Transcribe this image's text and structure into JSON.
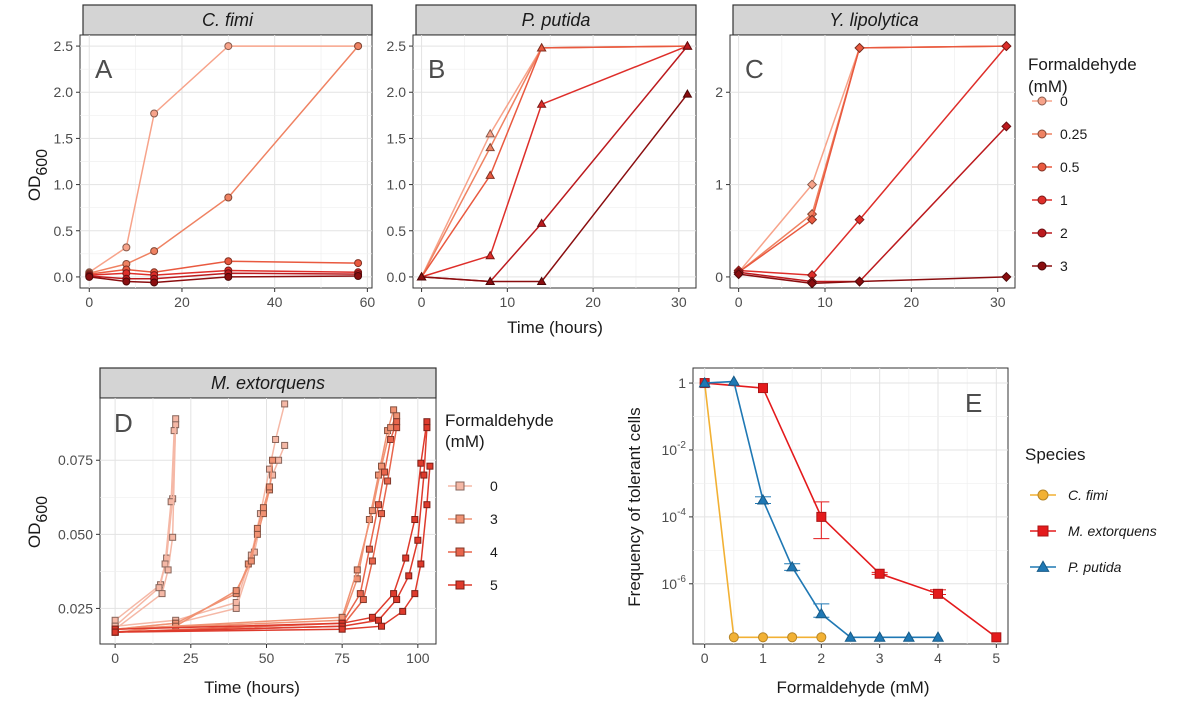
{
  "chart_data": [
    {
      "id": "A",
      "panel_label": "A",
      "strip": "C. fimi",
      "type": "line",
      "marker": "circle",
      "ylabel": "OD",
      "ylabel_sub": "600",
      "xlabel": "",
      "xlim": [
        -2,
        61
      ],
      "ylim": [
        -0.12,
        2.62
      ],
      "xticks": [
        0,
        20,
        40,
        60
      ],
      "xtick_labels": [
        "0",
        "20",
        "40",
        "60"
      ],
      "yticks": [
        0,
        0.5,
        1,
        1.5,
        2,
        2.5
      ],
      "ytick_labels": [
        "0.0",
        "0.5",
        "1.0",
        "1.5",
        "2.0",
        "2.5"
      ],
      "series": [
        {
          "name": "0",
          "color": "#f7a38a",
          "x": [
            0,
            8,
            14,
            30,
            58
          ],
          "y": [
            0.05,
            0.32,
            1.77,
            2.5,
            2.5
          ]
        },
        {
          "name": "0.25",
          "color": "#ef8262",
          "x": [
            0,
            8,
            14,
            30,
            58
          ],
          "y": [
            0.04,
            0.14,
            0.28,
            0.86,
            2.5
          ]
        },
        {
          "name": "0.5",
          "color": "#e9593f",
          "x": [
            0,
            8,
            14,
            30,
            58
          ],
          "y": [
            0.03,
            0.08,
            0.05,
            0.17,
            0.15
          ]
        },
        {
          "name": "1",
          "color": "#de2e2a",
          "x": [
            0,
            8,
            14,
            30,
            58
          ],
          "y": [
            0.02,
            0.04,
            0.02,
            0.07,
            0.05
          ]
        },
        {
          "name": "2",
          "color": "#bc1a1e",
          "x": [
            0,
            8,
            14,
            30,
            58
          ],
          "y": [
            0.01,
            -0.02,
            -0.02,
            0.04,
            0.03
          ]
        },
        {
          "name": "3",
          "color": "#8a0d0f",
          "x": [
            0,
            8,
            14,
            30,
            58
          ],
          "y": [
            0.0,
            -0.05,
            -0.06,
            0.0,
            0.01
          ]
        }
      ]
    },
    {
      "id": "B",
      "panel_label": "B",
      "strip": "P. putida",
      "type": "line",
      "marker": "triangle",
      "ylabel": "",
      "xlabel": "Time (hours)",
      "xlim": [
        -1,
        32
      ],
      "ylim": [
        -0.12,
        2.62
      ],
      "xticks": [
        0,
        10,
        20,
        30
      ],
      "xtick_labels": [
        "0",
        "10",
        "20",
        "30"
      ],
      "yticks": [
        0,
        0.5,
        1,
        1.5,
        2,
        2.5
      ],
      "ytick_labels": [
        "0.0",
        "0.5",
        "1.0",
        "1.5",
        "2.0",
        "2.5"
      ],
      "series": [
        {
          "name": "0",
          "color": "#f7a38a",
          "x": [
            0,
            8,
            14,
            31
          ],
          "y": [
            0.0,
            1.55,
            2.48,
            2.5
          ]
        },
        {
          "name": "0.25",
          "color": "#ef8262",
          "x": [
            0,
            8,
            14,
            31
          ],
          "y": [
            0.0,
            1.4,
            2.48,
            2.5
          ]
        },
        {
          "name": "0.5",
          "color": "#e9593f",
          "x": [
            0,
            8,
            14,
            31
          ],
          "y": [
            0.0,
            1.1,
            2.48,
            2.5
          ]
        },
        {
          "name": "1",
          "color": "#de2e2a",
          "x": [
            0,
            8,
            14,
            31
          ],
          "y": [
            0.0,
            0.23,
            1.87,
            2.5
          ]
        },
        {
          "name": "2",
          "color": "#bc1a1e",
          "x": [
            0,
            8,
            14,
            31
          ],
          "y": [
            0.0,
            -0.05,
            0.58,
            2.5
          ]
        },
        {
          "name": "3",
          "color": "#8a0d0f",
          "x": [
            0,
            8,
            14,
            31
          ],
          "y": [
            0.0,
            -0.05,
            -0.05,
            1.98
          ]
        }
      ]
    },
    {
      "id": "C",
      "panel_label": "C",
      "strip": "Y. lipolytica",
      "type": "line",
      "marker": "diamond",
      "ylabel": "",
      "xlabel": "",
      "xlim": [
        -1,
        32
      ],
      "ylim": [
        -0.12,
        2.62
      ],
      "xticks": [
        0,
        10,
        20,
        30
      ],
      "xtick_labels": [
        "0",
        "10",
        "20",
        "30"
      ],
      "yticks": [
        0,
        1,
        2
      ],
      "ytick_labels": [
        "0",
        "1",
        "2"
      ],
      "series": [
        {
          "name": "0",
          "color": "#f7a38a",
          "x": [
            0,
            8.5,
            14,
            31
          ],
          "y": [
            0.05,
            1.0,
            2.48,
            2.5
          ]
        },
        {
          "name": "0.25",
          "color": "#ef8262",
          "x": [
            0,
            8.5,
            14,
            31
          ],
          "y": [
            0.05,
            0.68,
            2.48,
            2.5
          ]
        },
        {
          "name": "0.5",
          "color": "#e9593f",
          "x": [
            0,
            8.5,
            14,
            31
          ],
          "y": [
            0.05,
            0.62,
            2.48,
            2.5
          ]
        },
        {
          "name": "1",
          "color": "#de2e2a",
          "x": [
            0,
            8.5,
            14,
            31
          ],
          "y": [
            0.07,
            0.02,
            0.62,
            2.5
          ]
        },
        {
          "name": "2",
          "color": "#bc1a1e",
          "x": [
            0,
            8.5,
            14,
            31
          ],
          "y": [
            0.05,
            -0.05,
            -0.05,
            1.63
          ]
        },
        {
          "name": "3",
          "color": "#8a0d0f",
          "x": [
            0,
            8.5,
            14,
            31
          ],
          "y": [
            0.03,
            -0.07,
            -0.05,
            0.0
          ]
        }
      ]
    },
    {
      "id": "D",
      "panel_label": "D",
      "strip": "M. extorquens",
      "type": "line",
      "marker": "square",
      "ylabel": "OD",
      "ylabel_sub": "600",
      "xlabel": "Time (hours)",
      "xlim": [
        -5,
        106
      ],
      "ylim": [
        0.013,
        0.096
      ],
      "xticks": [
        0,
        25,
        50,
        75,
        100
      ],
      "xtick_labels": [
        "0",
        "25",
        "50",
        "75",
        "100"
      ],
      "yticks": [
        0.025,
        0.05,
        0.075
      ],
      "ytick_labels": [
        "0.025",
        "0.050",
        "0.075"
      ],
      "series": [
        {
          "name": "0",
          "color": "#f5b8a6",
          "x": [
            0,
            15,
            17,
            19,
            20
          ],
          "y": [
            0.021,
            0.033,
            0.042,
            0.062,
            0.087
          ]
        },
        {
          "name": "0",
          "color": "#f5b8a6",
          "x": [
            0,
            14.5,
            16.5,
            18.5,
            19.5
          ],
          "y": [
            0.019,
            0.032,
            0.04,
            0.061,
            0.085
          ]
        },
        {
          "name": "0",
          "color": "#f5b8a6",
          "x": [
            0,
            15.5,
            17.5,
            19,
            20
          ],
          "y": [
            0.018,
            0.03,
            0.038,
            0.049,
            0.089
          ]
        },
        {
          "name": "0",
          "color": "#f5b8a6",
          "x": [
            0,
            20,
            40,
            45,
            48,
            51,
            53,
            56
          ],
          "y": [
            0.019,
            0.021,
            0.027,
            0.043,
            0.057,
            0.072,
            0.082,
            0.094
          ]
        },
        {
          "name": "0",
          "color": "#f5b8a6",
          "x": [
            0,
            20,
            40,
            46,
            49,
            52,
            54,
            56
          ],
          "y": [
            0.018,
            0.02,
            0.025,
            0.044,
            0.058,
            0.07,
            0.075,
            0.08
          ]
        },
        {
          "name": "3",
          "color": "#f09273",
          "x": [
            0,
            20,
            40,
            44,
            47,
            49,
            51,
            52
          ],
          "y": [
            0.018,
            0.02,
            0.03,
            0.04,
            0.05,
            0.057,
            0.065,
            0.075
          ]
        },
        {
          "name": "3",
          "color": "#f09273",
          "x": [
            0,
            20,
            40,
            45,
            47,
            49,
            51
          ],
          "y": [
            0.017,
            0.019,
            0.031,
            0.041,
            0.052,
            0.059,
            0.066
          ]
        },
        {
          "name": "3",
          "color": "#f09273",
          "x": [
            0,
            75,
            80,
            84,
            87,
            90,
            92
          ],
          "y": [
            0.018,
            0.021,
            0.035,
            0.055,
            0.07,
            0.085,
            0.092
          ]
        },
        {
          "name": "3",
          "color": "#f09273",
          "x": [
            0,
            75,
            80,
            85,
            88,
            91,
            93
          ],
          "y": [
            0.018,
            0.022,
            0.038,
            0.058,
            0.073,
            0.086,
            0.09
          ]
        },
        {
          "name": "4",
          "color": "#e8654c",
          "x": [
            0,
            75,
            81,
            84,
            87,
            89,
            91,
            93
          ],
          "y": [
            0.017,
            0.02,
            0.03,
            0.045,
            0.06,
            0.071,
            0.082,
            0.088
          ]
        },
        {
          "name": "4",
          "color": "#e8654c",
          "x": [
            0,
            75,
            82,
            85,
            88,
            90,
            93
          ],
          "y": [
            0.017,
            0.019,
            0.028,
            0.041,
            0.057,
            0.068,
            0.086
          ]
        },
        {
          "name": "5",
          "color": "#de3a2c",
          "x": [
            0,
            75,
            85,
            92,
            96,
            99,
            101,
            103
          ],
          "y": [
            0.018,
            0.02,
            0.022,
            0.03,
            0.042,
            0.055,
            0.074,
            0.088
          ]
        },
        {
          "name": "5",
          "color": "#de3a2c",
          "x": [
            0,
            75,
            87,
            93,
            97,
            100,
            102,
            103
          ],
          "y": [
            0.017,
            0.019,
            0.021,
            0.028,
            0.036,
            0.048,
            0.07,
            0.086
          ]
        },
        {
          "name": "5",
          "color": "#de3a2c",
          "x": [
            0,
            75,
            88,
            95,
            99,
            101,
            103,
            104
          ],
          "y": [
            0.017,
            0.018,
            0.019,
            0.024,
            0.03,
            0.04,
            0.06,
            0.073
          ]
        }
      ]
    },
    {
      "id": "E",
      "panel_label": "E",
      "strip": "",
      "type": "line",
      "scale_y": "log",
      "ylabel": "Frequency of tolerant cells",
      "xlabel": "Formaldehyde (mM)",
      "xlim": [
        -0.2,
        5.2
      ],
      "ylim_log10": [
        -7.8,
        0.45
      ],
      "xticks": [
        0,
        1,
        2,
        3,
        4,
        5
      ],
      "xtick_labels": [
        "0",
        "1",
        "2",
        "3",
        "4",
        "5"
      ],
      "yticks_log10": [
        0,
        -2,
        -4,
        -6
      ],
      "ytick_base": "10",
      "ytick_labels": [
        "1",
        "10",
        "10",
        "10"
      ],
      "ytick_exponents": [
        "",
        "-2",
        "-4",
        "-6"
      ],
      "series": [
        {
          "name": "C. fimi",
          "color": "#f2b134",
          "marker": "circle",
          "x": [
            0,
            0.5,
            1,
            1.5,
            2
          ],
          "log10_y": [
            0,
            -7.6,
            -7.6,
            -7.6,
            -7.6
          ]
        },
        {
          "name": "M. extorquens",
          "color": "#e41a1c",
          "marker": "square",
          "x": [
            0,
            1,
            2,
            3,
            4,
            5
          ],
          "log10_y": [
            0,
            -0.15,
            -4.0,
            -5.7,
            -6.3,
            -7.6
          ],
          "err_low": [
            0,
            0,
            -4.65,
            -5.72,
            -6.32,
            -7.6
          ],
          "err_high": [
            0,
            0,
            -3.55,
            -5.66,
            -6.18,
            -7.6
          ]
        },
        {
          "name": "P. putida",
          "color": "#1f78b4",
          "marker": "triangle",
          "x": [
            0,
            0.5,
            1,
            1.5,
            2,
            2.5,
            3,
            3.5,
            4
          ],
          "log10_y": [
            0,
            0.05,
            -3.5,
            -5.5,
            -6.9,
            -7.6,
            -7.6,
            -7.6,
            -7.6
          ],
          "err_low": [
            0,
            0,
            -3.6,
            -5.6,
            -7.0,
            -7.6,
            -7.6,
            -7.6,
            -7.6
          ],
          "err_high": [
            0,
            0,
            -3.4,
            -5.4,
            -6.6,
            -7.6,
            -7.6,
            -7.6,
            -7.6
          ]
        }
      ]
    }
  ],
  "legend_top": {
    "title_line1": "Formaldehyde",
    "title_line2": "(mM)",
    "items": [
      {
        "label": "0",
        "color": "#f7a38a"
      },
      {
        "label": "0.25",
        "color": "#ef8262"
      },
      {
        "label": "0.5",
        "color": "#e9593f"
      },
      {
        "label": "1",
        "color": "#de2e2a"
      },
      {
        "label": "2",
        "color": "#bc1a1e"
      },
      {
        "label": "3",
        "color": "#8a0d0f"
      }
    ]
  },
  "legend_d": {
    "title_line1": "Formaldehyde",
    "title_line2": "(mM)",
    "items": [
      {
        "label": "0",
        "color": "#f5b8a6"
      },
      {
        "label": "3",
        "color": "#f09273"
      },
      {
        "label": "4",
        "color": "#e8654c"
      },
      {
        "label": "5",
        "color": "#de3a2c"
      }
    ]
  },
  "legend_e": {
    "title": "Species",
    "items": [
      {
        "label": "C. fimi",
        "color": "#f2b134",
        "marker": "circle"
      },
      {
        "label": "M. extorquens",
        "color": "#e41a1c",
        "marker": "square"
      },
      {
        "label": "P. putida",
        "color": "#1f78b4",
        "marker": "triangle"
      }
    ]
  }
}
